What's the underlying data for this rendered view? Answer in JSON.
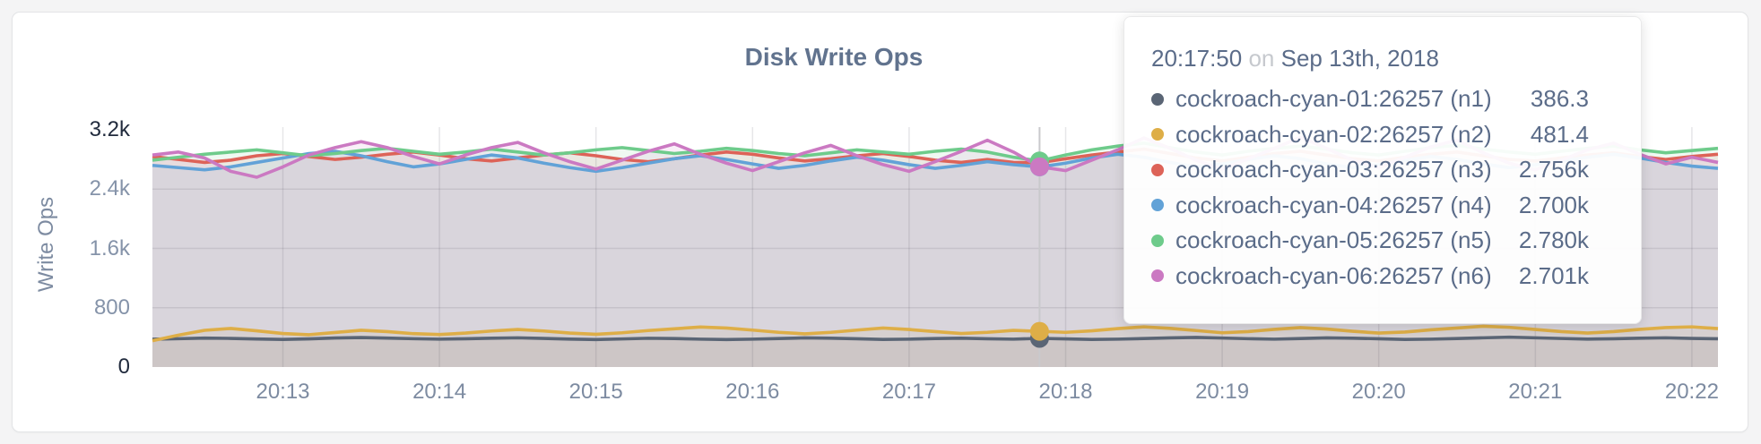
{
  "page": {
    "background": "#f4f4f5"
  },
  "chart_data": {
    "type": "area",
    "title": "Disk Write Ops",
    "ylabel": "Write Ops",
    "xlabel": "",
    "ylim": [
      0,
      3200
    ],
    "grid": true,
    "x_start": "20:12:10",
    "x_step_seconds": 10,
    "x_ticks": [
      {
        "label": "20:13",
        "index": 5
      },
      {
        "label": "20:14",
        "index": 11
      },
      {
        "label": "20:15",
        "index": 17
      },
      {
        "label": "20:16",
        "index": 23
      },
      {
        "label": "20:17",
        "index": 29
      },
      {
        "label": "20:18",
        "index": 35
      },
      {
        "label": "20:19",
        "index": 41
      },
      {
        "label": "20:20",
        "index": 47
      },
      {
        "label": "20:21",
        "index": 53
      },
      {
        "label": "20:22",
        "index": 59
      }
    ],
    "y_ticks": [
      {
        "label": "0",
        "value": 0,
        "strong": true
      },
      {
        "label": "800",
        "value": 800,
        "strong": false
      },
      {
        "label": "1.6k",
        "value": 1600,
        "strong": false
      },
      {
        "label": "2.4k",
        "value": 2400,
        "strong": false
      },
      {
        "label": "3.2k",
        "value": 3200,
        "strong": true
      }
    ],
    "hover": {
      "index": 34,
      "time": "20:17:50",
      "conjunction": "on",
      "date": "Sep 13th, 2018"
    },
    "series": [
      {
        "name": "cockroach-cyan-01:26257 (n1)",
        "color": "#5a6575",
        "hover_label": "386.3",
        "hover_value": 386.3,
        "values": [
          375,
          382,
          390,
          386,
          378,
          372,
          380,
          392,
          398,
          390,
          382,
          376,
          381,
          389,
          394,
          386,
          377,
          371,
          379,
          388,
          384,
          376,
          371,
          376,
          384,
          393,
          389,
          381,
          372,
          376,
          384,
          389,
          381,
          376,
          386.3,
          380,
          372,
          376,
          384,
          393,
          399,
          391,
          382,
          376,
          384,
          393,
          389,
          381,
          372,
          376,
          384,
          394,
          403,
          394,
          385,
          377,
          381,
          389,
          394,
          386,
          381
        ]
      },
      {
        "name": "cockroach-cyan-02:26257 (n2)",
        "color": "#deae47",
        "hover_label": "481.4",
        "hover_value": 481.4,
        "values": [
          355,
          430,
          495,
          520,
          488,
          452,
          436,
          466,
          496,
          478,
          450,
          438,
          458,
          486,
          506,
          486,
          458,
          442,
          462,
          492,
          516,
          540,
          526,
          498,
          468,
          448,
          468,
          498,
          526,
          506,
          478,
          452,
          468,
          494,
          481.4,
          468,
          488,
          518,
          542,
          522,
          492,
          462,
          478,
          508,
          532,
          512,
          482,
          458,
          472,
          502,
          526,
          550,
          536,
          506,
          478,
          458,
          478,
          508,
          532,
          542,
          518
        ]
      },
      {
        "name": "cockroach-cyan-03:26257 (n3)",
        "color": "#dd6358",
        "hover_label": "2.756k",
        "hover_value": 2756,
        "values": [
          2840,
          2800,
          2760,
          2790,
          2850,
          2880,
          2840,
          2800,
          2830,
          2870,
          2900,
          2860,
          2810,
          2780,
          2820,
          2860,
          2890,
          2850,
          2800,
          2770,
          2810,
          2860,
          2900,
          2870,
          2820,
          2780,
          2810,
          2850,
          2880,
          2840,
          2790,
          2760,
          2800,
          2760,
          2756,
          2810,
          2860,
          2900,
          2940,
          2880,
          2820,
          2780,
          2830,
          2880,
          2910,
          2860,
          2810,
          2780,
          2830,
          2870,
          2900,
          2850,
          2800,
          2780,
          2820,
          2860,
          2890,
          2840,
          2800,
          2840,
          2870
        ]
      },
      {
        "name": "cockroach-cyan-04:26257 (n4)",
        "color": "#62a2d7",
        "hover_label": "2.700k",
        "hover_value": 2700,
        "values": [
          2720,
          2690,
          2660,
          2700,
          2760,
          2820,
          2880,
          2910,
          2850,
          2770,
          2700,
          2740,
          2800,
          2860,
          2820,
          2750,
          2690,
          2640,
          2690,
          2750,
          2810,
          2850,
          2800,
          2740,
          2680,
          2720,
          2780,
          2830,
          2790,
          2730,
          2680,
          2720,
          2770,
          2730,
          2700,
          2750,
          2820,
          2870,
          2830,
          2760,
          2700,
          2740,
          2800,
          2850,
          2810,
          2740,
          2690,
          2730,
          2790,
          2840,
          2800,
          2740,
          2690,
          2730,
          2780,
          2830,
          2870,
          2820,
          2760,
          2710,
          2680
        ]
      },
      {
        "name": "cockroach-cyan-05:26257 (n5)",
        "color": "#6ecb8b",
        "hover_label": "2.780k",
        "hover_value": 2780,
        "values": [
          2790,
          2830,
          2870,
          2900,
          2930,
          2890,
          2850,
          2880,
          2920,
          2950,
          2910,
          2870,
          2900,
          2940,
          2900,
          2860,
          2890,
          2930,
          2960,
          2920,
          2880,
          2910,
          2950,
          2920,
          2880,
          2850,
          2890,
          2930,
          2900,
          2870,
          2910,
          2940,
          2900,
          2830,
          2780,
          2860,
          2930,
          2980,
          3020,
          2960,
          2900,
          2860,
          2910,
          2950,
          2980,
          2940,
          2890,
          2860,
          2910,
          2960,
          2990,
          2940,
          2900,
          2870,
          2910,
          2950,
          2980,
          2930,
          2890,
          2920,
          2950
        ]
      },
      {
        "name": "cockroach-cyan-06:26257 (n6)",
        "color": "#cb79c2",
        "hover_label": "2.701k",
        "hover_value": 2701,
        "values": [
          2860,
          2900,
          2820,
          2640,
          2560,
          2700,
          2860,
          2960,
          3040,
          2960,
          2840,
          2740,
          2860,
          2960,
          3030,
          2890,
          2770,
          2670,
          2790,
          2910,
          3010,
          2870,
          2750,
          2650,
          2770,
          2890,
          2990,
          2850,
          2730,
          2640,
          2770,
          2910,
          3060,
          2900,
          2701,
          2650,
          2790,
          2930,
          3090,
          2950,
          2790,
          2670,
          2810,
          2950,
          3100,
          2950,
          2790,
          2690,
          2830,
          2970,
          3060,
          2890,
          2750,
          2660,
          2790,
          2930,
          3020,
          2870,
          2740,
          2830,
          2760
        ]
      }
    ]
  }
}
